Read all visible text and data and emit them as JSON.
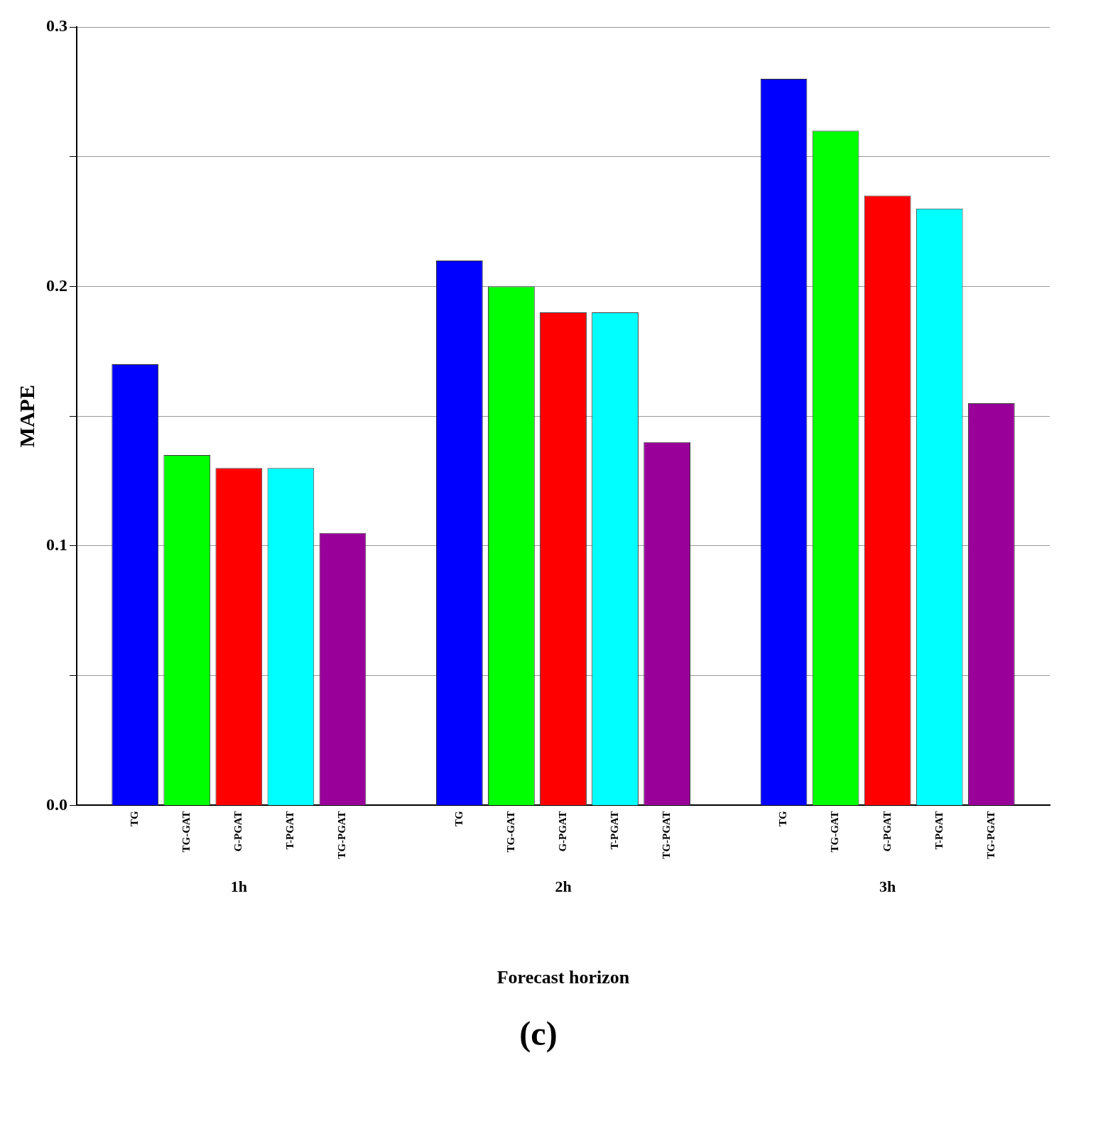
{
  "chart_data": {
    "type": "bar",
    "ylabel": "MAPE",
    "xlabel": "Forecast horizon",
    "categories": [
      "1h",
      "2h",
      "3h"
    ],
    "series": [
      {
        "name": "TG",
        "color": "#0000ff",
        "values": [
          0.17,
          0.21,
          0.28
        ]
      },
      {
        "name": "TG-GAT",
        "color": "#00ff00",
        "values": [
          0.135,
          0.2,
          0.26
        ]
      },
      {
        "name": "G-PGAT",
        "color": "#ff0000",
        "values": [
          0.13,
          0.19,
          0.235
        ]
      },
      {
        "name": "T-PGAT",
        "color": "#00ffff",
        "values": [
          0.13,
          0.19,
          0.23
        ]
      },
      {
        "name": "TG-PGAT",
        "color": "#990099",
        "values": [
          0.105,
          0.14,
          0.155
        ]
      }
    ],
    "ylim": [
      0,
      0.3
    ],
    "yticks": [
      {
        "value": 0,
        "label": "0.0"
      },
      {
        "value": 0.05,
        "label": null
      },
      {
        "value": 0.1,
        "label": "0.1"
      },
      {
        "value": 0.15,
        "label": null
      },
      {
        "value": 0.2,
        "label": "0.2"
      },
      {
        "value": 0.25,
        "label": null
      },
      {
        "value": 0.3,
        "label": "0.3"
      }
    ],
    "grid": "y",
    "legend": false,
    "annotations": [
      "(c)"
    ]
  }
}
